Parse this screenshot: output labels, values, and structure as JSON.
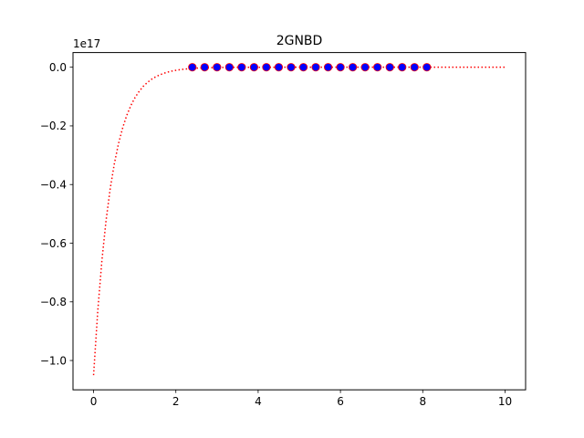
{
  "chart_data": {
    "type": "line",
    "title": "2GNBD",
    "xlabel": "",
    "ylabel": "",
    "y_offset_label": "1e17",
    "xlim": [
      -0.5,
      10.5
    ],
    "ylim": [
      -1.1,
      0.05
    ],
    "x_ticks": [
      0,
      2,
      4,
      6,
      8,
      10
    ],
    "x_tick_labels": [
      "0",
      "2",
      "4",
      "6",
      "8",
      "10"
    ],
    "y_ticks": [
      0.0,
      -0.2,
      -0.4,
      -0.6,
      -0.8,
      -1.0
    ],
    "y_tick_labels": [
      "0.0",
      "−0.2",
      "−0.4",
      "−0.6",
      "−0.8",
      "−1.0"
    ],
    "grid": false,
    "series": [
      {
        "style": "dotted-line",
        "color": "#ff0000",
        "x_range": [
          0,
          10
        ],
        "points": 100,
        "function": "exponential decay to 0",
        "start_value": -1.05,
        "decay_rate": 2.3
      },
      {
        "style": "markers",
        "color": "#0000ff",
        "edge_color": "#ff0000",
        "x": [
          2.4,
          2.7,
          3.0,
          3.3,
          3.6,
          3.9,
          4.2,
          4.5,
          4.8,
          5.1,
          5.4,
          5.7,
          6.0,
          6.3,
          6.6,
          6.9,
          7.2,
          7.5,
          7.8,
          8.1
        ],
        "y": [
          0,
          0,
          0,
          0,
          0,
          0,
          0,
          0,
          0,
          0,
          0,
          0,
          0,
          0,
          0,
          0,
          0,
          0,
          0,
          0
        ]
      }
    ]
  }
}
